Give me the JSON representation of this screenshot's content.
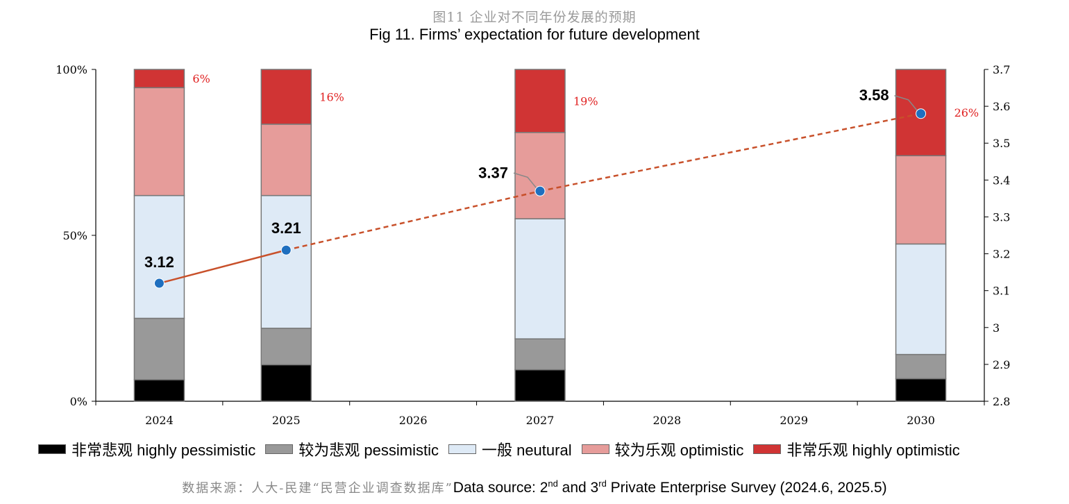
{
  "title_zh": "图11 企业对不同年份发展的预期",
  "title_en": "Fig 11. Firms’ expectation for future development",
  "colors": {
    "highly_pessimistic": "#000000",
    "pessimistic": "#999999",
    "neutral": "#deeaf6",
    "optimistic": "#e69c9a",
    "highly_optimistic": "#d03434",
    "line": "#c8502a",
    "marker": "#1f6fbf",
    "share_label": "#e02020"
  },
  "chart_data": {
    "type": "bar",
    "stacked": true,
    "categories": [
      "2024",
      "2025",
      "2026",
      "2027",
      "2028",
      "2029",
      "2030"
    ],
    "left_axis": {
      "ticks": [
        "0%",
        "50%",
        "100%"
      ],
      "range": [
        0,
        100
      ]
    },
    "right_axis": {
      "ticks": [
        "2.8",
        "2.9",
        "3",
        "3.1",
        "3.2",
        "3.3",
        "3.4",
        "3.5",
        "3.6",
        "3.7"
      ],
      "range": [
        2.8,
        3.7
      ]
    },
    "series": [
      {
        "name": "非常悲观 highly pessimistic",
        "key": "highly_pessimistic",
        "values": [
          6.5,
          11,
          null,
          9.5,
          null,
          null,
          6.8
        ]
      },
      {
        "name": "较为悲观 pessimistic",
        "key": "pessimistic",
        "values": [
          18.5,
          11,
          null,
          9.3,
          null,
          null,
          7.3
        ]
      },
      {
        "name": "一般 neutural",
        "key": "neutral",
        "values": [
          37,
          40,
          null,
          36.2,
          null,
          null,
          33.3
        ]
      },
      {
        "name": "较为乐观 optimistic",
        "key": "optimistic",
        "values": [
          32.5,
          21.5,
          null,
          26,
          null,
          null,
          26.6
        ]
      },
      {
        "name": "非常乐观 highly optimistic",
        "key": "highly_optimistic",
        "values": [
          5.5,
          16.5,
          null,
          19,
          null,
          null,
          26
        ]
      }
    ],
    "share_labels": [
      {
        "category": "2024",
        "text": "6%"
      },
      {
        "category": "2025",
        "text": "16%"
      },
      {
        "category": "2027",
        "text": "19%"
      },
      {
        "category": "2030",
        "text": "26%"
      }
    ],
    "score_line": {
      "axis": "right",
      "points": [
        {
          "category": "2024",
          "value": 3.12,
          "label": "3.12"
        },
        {
          "category": "2025",
          "value": 3.21,
          "label": "3.21"
        },
        {
          "category": "2027",
          "value": 3.37,
          "label": "3.37"
        },
        {
          "category": "2030",
          "value": 3.58,
          "label": "3.58"
        }
      ],
      "solid_between": [
        "2024",
        "2025"
      ],
      "dashed_after": "2025"
    }
  },
  "legend": [
    {
      "label": "非常悲观 highly pessimistic",
      "key": "highly_pessimistic"
    },
    {
      "label": "较为悲观 pessimistic",
      "key": "pessimistic"
    },
    {
      "label": "一般 neutural",
      "key": "neutral"
    },
    {
      "label": "较为乐观 optimistic",
      "key": "optimistic"
    },
    {
      "label": "非常乐观 highly optimistic",
      "key": "highly_optimistic"
    }
  ],
  "source": {
    "zh": "数据来源：人大-民建“民营企业调查数据库”",
    "pre": "Data source: 2",
    "sup1": "nd",
    "mid": " and 3",
    "sup2": "rd",
    "post": " Private Enterprise Survey (2024.6, 2025.5)"
  }
}
